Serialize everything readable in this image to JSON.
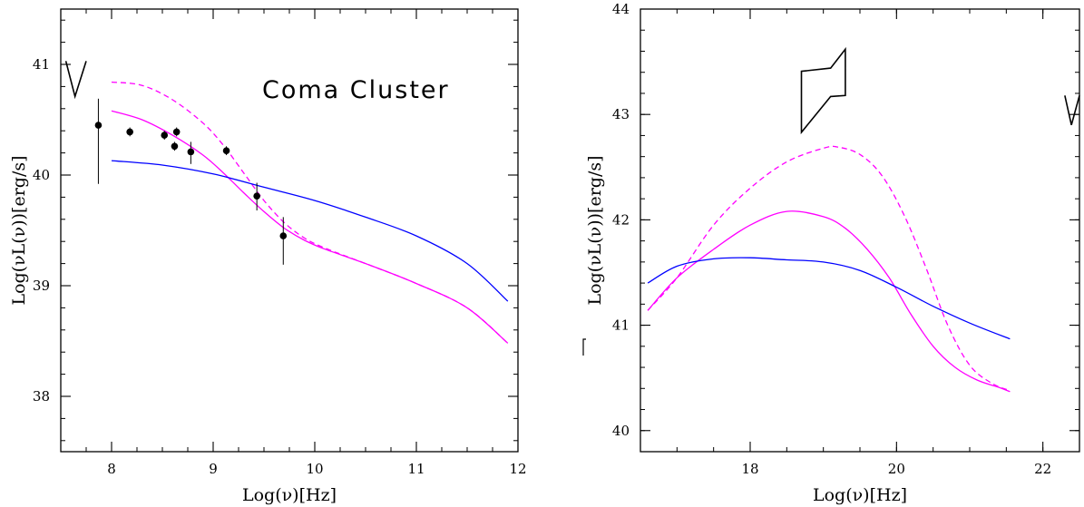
{
  "chart_data": [
    {
      "type": "line",
      "xlabel": "Log(ν)[Hz]",
      "ylabel": "Log(νL(ν))[erg/s]",
      "xlim": [
        7.5,
        12.0
      ],
      "ylim": [
        37.5,
        41.5
      ],
      "xticks": [
        8,
        9,
        10,
        11,
        12
      ],
      "yticks": [
        38,
        39,
        40,
        41
      ],
      "annotation": "Coma Cluster",
      "series": [
        {
          "color": "#ff00ff",
          "dash": "dashed",
          "x": [
            8.0,
            8.3,
            8.6,
            8.9,
            9.1,
            9.3,
            9.5,
            9.7,
            9.9,
            10.1,
            10.5,
            11.0,
            11.5,
            11.9
          ],
          "y": [
            40.84,
            40.81,
            40.68,
            40.47,
            40.27,
            40.02,
            39.77,
            39.57,
            39.43,
            39.34,
            39.2,
            39.02,
            38.8,
            38.48
          ]
        },
        {
          "color": "#ff00ff",
          "dash": "solid",
          "x": [
            8.0,
            8.3,
            8.6,
            8.9,
            9.1,
            9.3,
            9.5,
            9.7,
            9.9,
            10.1,
            10.5,
            11.0,
            11.5,
            11.9
          ],
          "y": [
            40.58,
            40.5,
            40.36,
            40.18,
            40.02,
            39.84,
            39.67,
            39.52,
            39.41,
            39.33,
            39.2,
            39.02,
            38.8,
            38.48
          ]
        },
        {
          "color": "#0000ff",
          "dash": "solid",
          "x": [
            8.0,
            8.5,
            9.0,
            9.5,
            10.0,
            10.5,
            11.0,
            11.5,
            11.9
          ],
          "y": [
            40.13,
            40.09,
            40.01,
            39.89,
            39.77,
            39.62,
            39.45,
            39.2,
            38.86
          ]
        }
      ],
      "points": [
        {
          "x": 7.87,
          "y": 40.45,
          "ylo": 39.92,
          "yhi": 40.69
        },
        {
          "x": 8.18,
          "y": 40.39,
          "ylo": 40.35,
          "yhi": 40.43
        },
        {
          "x": 8.52,
          "y": 40.36,
          "ylo": 40.32,
          "yhi": 40.4
        },
        {
          "x": 8.62,
          "y": 40.26,
          "ylo": 40.22,
          "yhi": 40.3
        },
        {
          "x": 8.64,
          "y": 40.39,
          "ylo": 40.35,
          "yhi": 40.43
        },
        {
          "x": 8.78,
          "y": 40.21,
          "ylo": 40.1,
          "yhi": 40.3
        },
        {
          "x": 9.13,
          "y": 40.22,
          "ylo": 40.18,
          "yhi": 40.26
        },
        {
          "x": 9.43,
          "y": 39.81,
          "ylo": 39.68,
          "yhi": 39.93
        },
        {
          "x": 9.69,
          "y": 39.45,
          "ylo": 39.19,
          "yhi": 39.62
        }
      ],
      "limits": [
        {
          "type": "v",
          "x0": 7.55,
          "x1": 7.75,
          "ytop": 41.03,
          "ybot": 40.71
        }
      ]
    },
    {
      "type": "line",
      "xlabel": "Log(ν)[Hz]",
      "ylabel": "Log(νL(ν))[erg/s]",
      "xlim": [
        16.5,
        22.5
      ],
      "ylim": [
        39.8,
        44.0
      ],
      "xticks": [
        18,
        20,
        22
      ],
      "yticks": [
        40,
        41,
        42,
        43,
        44
      ],
      "series": [
        {
          "color": "#ff00ff",
          "dash": "dashed",
          "x": [
            16.6,
            17.0,
            17.5,
            18.0,
            18.5,
            19.0,
            19.2,
            19.5,
            19.8,
            20.1,
            20.4,
            20.7,
            21.0,
            21.3,
            21.55
          ],
          "y": [
            41.14,
            41.45,
            41.95,
            42.3,
            42.55,
            42.68,
            42.69,
            42.62,
            42.42,
            42.05,
            41.55,
            41.0,
            40.62,
            40.45,
            40.38
          ]
        },
        {
          "color": "#ff00ff",
          "dash": "solid",
          "x": [
            16.6,
            17.0,
            17.5,
            18.0,
            18.5,
            19.0,
            19.3,
            19.6,
            19.9,
            20.2,
            20.5,
            20.8,
            21.1,
            21.4,
            21.55
          ],
          "y": [
            41.14,
            41.45,
            41.72,
            41.95,
            42.08,
            42.03,
            41.92,
            41.72,
            41.45,
            41.1,
            40.8,
            40.6,
            40.48,
            40.41,
            40.37
          ]
        },
        {
          "color": "#0000ff",
          "dash": "solid",
          "x": [
            16.6,
            17.0,
            17.5,
            18.0,
            18.5,
            19.0,
            19.5,
            20.0,
            20.5,
            21.0,
            21.55
          ],
          "y": [
            41.4,
            41.56,
            41.63,
            41.64,
            41.62,
            41.6,
            41.52,
            41.36,
            41.18,
            41.02,
            40.87
          ]
        }
      ],
      "shapes": [
        {
          "type": "bowtie",
          "points": [
            [
              18.7,
              43.41
            ],
            [
              19.1,
              43.44
            ],
            [
              19.3,
              43.62
            ],
            [
              19.3,
              43.18
            ],
            [
              19.1,
              43.17
            ],
            [
              18.7,
              42.83
            ]
          ]
        },
        {
          "type": "v",
          "x0": 22.3,
          "x1": 22.5,
          "ytop": 43.18,
          "ybot": 42.9
        }
      ]
    }
  ]
}
